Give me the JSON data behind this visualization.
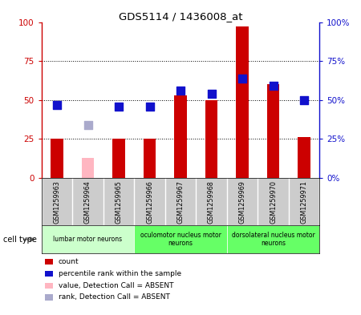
{
  "title": "GDS5114 / 1436008_at",
  "samples": [
    "GSM1259963",
    "GSM1259964",
    "GSM1259965",
    "GSM1259966",
    "GSM1259967",
    "GSM1259968",
    "GSM1259969",
    "GSM1259970",
    "GSM1259971"
  ],
  "count_values": [
    25,
    null,
    25,
    25,
    53,
    50,
    97,
    60,
    26
  ],
  "count_absent": [
    null,
    13,
    null,
    null,
    null,
    null,
    null,
    null,
    null
  ],
  "rank_values": [
    47,
    null,
    46,
    46,
    56,
    54,
    64,
    59,
    50
  ],
  "rank_absent": [
    null,
    34,
    null,
    null,
    null,
    null,
    null,
    null,
    null
  ],
  "ylim": [
    0,
    100
  ],
  "yticks": [
    0,
    25,
    50,
    75,
    100
  ],
  "bar_color_red": "#CC0000",
  "bar_color_pink": "#FFB6C1",
  "dot_color_blue": "#1111CC",
  "dot_color_lightblue": "#AAAACC",
  "cell_groups": [
    {
      "label": "lumbar motor neurons",
      "start": 0,
      "end": 3
    },
    {
      "label": "oculomotor nucleus motor\nneurons",
      "start": 3,
      "end": 6
    },
    {
      "label": "dorsolateral nucleus motor\nneurons",
      "start": 6,
      "end": 9
    }
  ],
  "group_colors": [
    "#CCFFCC",
    "#66FF66",
    "#66FF66"
  ],
  "legend_items": [
    {
      "label": "count",
      "color": "#CC0000"
    },
    {
      "label": "percentile rank within the sample",
      "color": "#1111CC"
    },
    {
      "label": "value, Detection Call = ABSENT",
      "color": "#FFB6C1"
    },
    {
      "label": "rank, Detection Call = ABSENT",
      "color": "#AAAACC"
    }
  ],
  "bar_width": 0.4,
  "dot_size": 45,
  "label_area_color": "#CCCCCC",
  "separator_color": "#AAAAAA"
}
